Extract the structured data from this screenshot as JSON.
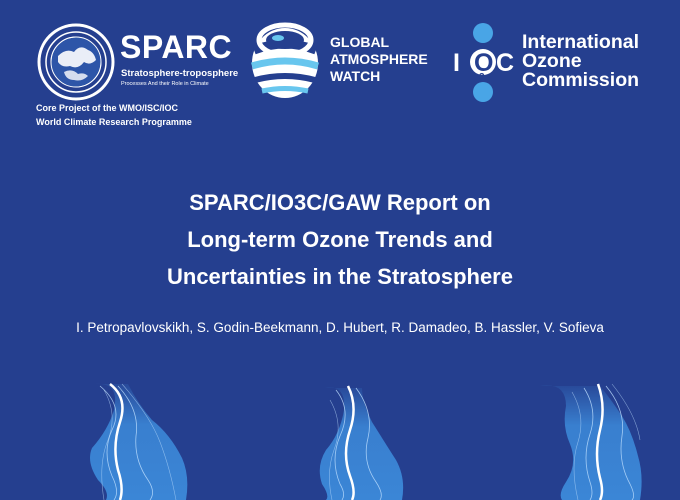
{
  "logos": {
    "sparc": {
      "name": "SPARC",
      "subtitle": "Stratosphere-troposphere",
      "tagline": "Processes And their Role in Climate",
      "core_project": [
        "Core Project of the WMO/ISC/IOC",
        "World Climate Research Programme"
      ]
    },
    "gaw": {
      "lines": [
        "GLOBAL",
        "ATMOSPHERE",
        "WATCH"
      ]
    },
    "io3c": {
      "mark_letters": [
        "I",
        "O",
        "3",
        "C"
      ],
      "lines": [
        "International",
        "Ozone",
        "Commission"
      ]
    }
  },
  "report": {
    "title_lines": [
      "SPARC/IO3C/GAW Report on",
      "Long-term Ozone Trends and",
      "Uncertainties in the Stratosphere"
    ],
    "authors": "I. Petropavlovskikh, S. Godin-Beekmann, D. Hubert, R. Damadeo, B. Hassler, V. Sofieva"
  },
  "colors": {
    "background": "#253f8f",
    "text": "#ffffff",
    "profile_fill": "#3b86d6",
    "io3c_light_blue": "#49a5e6",
    "gaw_stripes": "#68c6ee"
  },
  "decoration": {
    "items": [
      "ozone-profile-plot",
      "ozone-profile-plot",
      "ozone-profile-plot"
    ]
  }
}
